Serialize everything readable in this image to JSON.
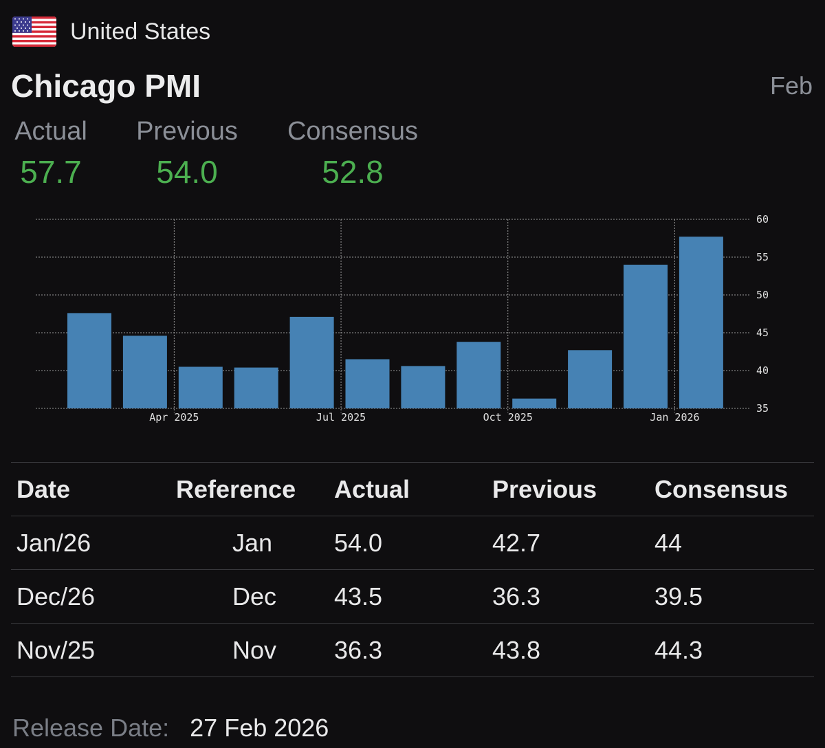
{
  "header": {
    "country": "United States",
    "flag_icon": "us-flag-icon",
    "title": "Chicago PMI",
    "period": "Feb"
  },
  "summary": {
    "actual_label": "Actual",
    "actual_value": "57.7",
    "previous_label": "Previous",
    "previous_value": "54.0",
    "consensus_label": "Consensus",
    "consensus_value": "52.8",
    "value_color": "#4caf50"
  },
  "chart_data": {
    "type": "bar",
    "title": "",
    "categories": [
      "Mar 2025",
      "Apr 2025",
      "May 2025",
      "Jun 2025",
      "Jul 2025",
      "Aug 2025",
      "Sep 2025",
      "Oct 2025",
      "Nov 2025",
      "Dec 2025",
      "Jan 2026",
      "Feb 2026"
    ],
    "values": [
      47.6,
      44.6,
      40.5,
      40.4,
      47.1,
      41.5,
      40.6,
      43.8,
      36.3,
      42.7,
      54.0,
      57.7
    ],
    "x_tick_labels": [
      "Apr 2025",
      "Jul 2025",
      "Oct 2025",
      "Jan 2026"
    ],
    "y_ticks": [
      35,
      40,
      45,
      50,
      55,
      60
    ],
    "ylim": [
      35,
      60
    ],
    "xlabel": "",
    "ylabel": "",
    "bar_color": "#4682b4",
    "grid": true
  },
  "table": {
    "headers": [
      "Date",
      "Reference",
      "Actual",
      "Previous",
      "Consensus"
    ],
    "rows": [
      {
        "date": "Jan/26",
        "reference": "Jan",
        "actual": "54.0",
        "previous": "42.7",
        "consensus": "44"
      },
      {
        "date": "Dec/26",
        "reference": "Dec",
        "actual": "43.5",
        "previous": "36.3",
        "consensus": "39.5"
      },
      {
        "date": "Nov/25",
        "reference": "Nov",
        "actual": "36.3",
        "previous": "43.8",
        "consensus": "44.3"
      }
    ]
  },
  "footer": {
    "release_label": "Release Date:",
    "release_value": "27 Feb 2026"
  }
}
